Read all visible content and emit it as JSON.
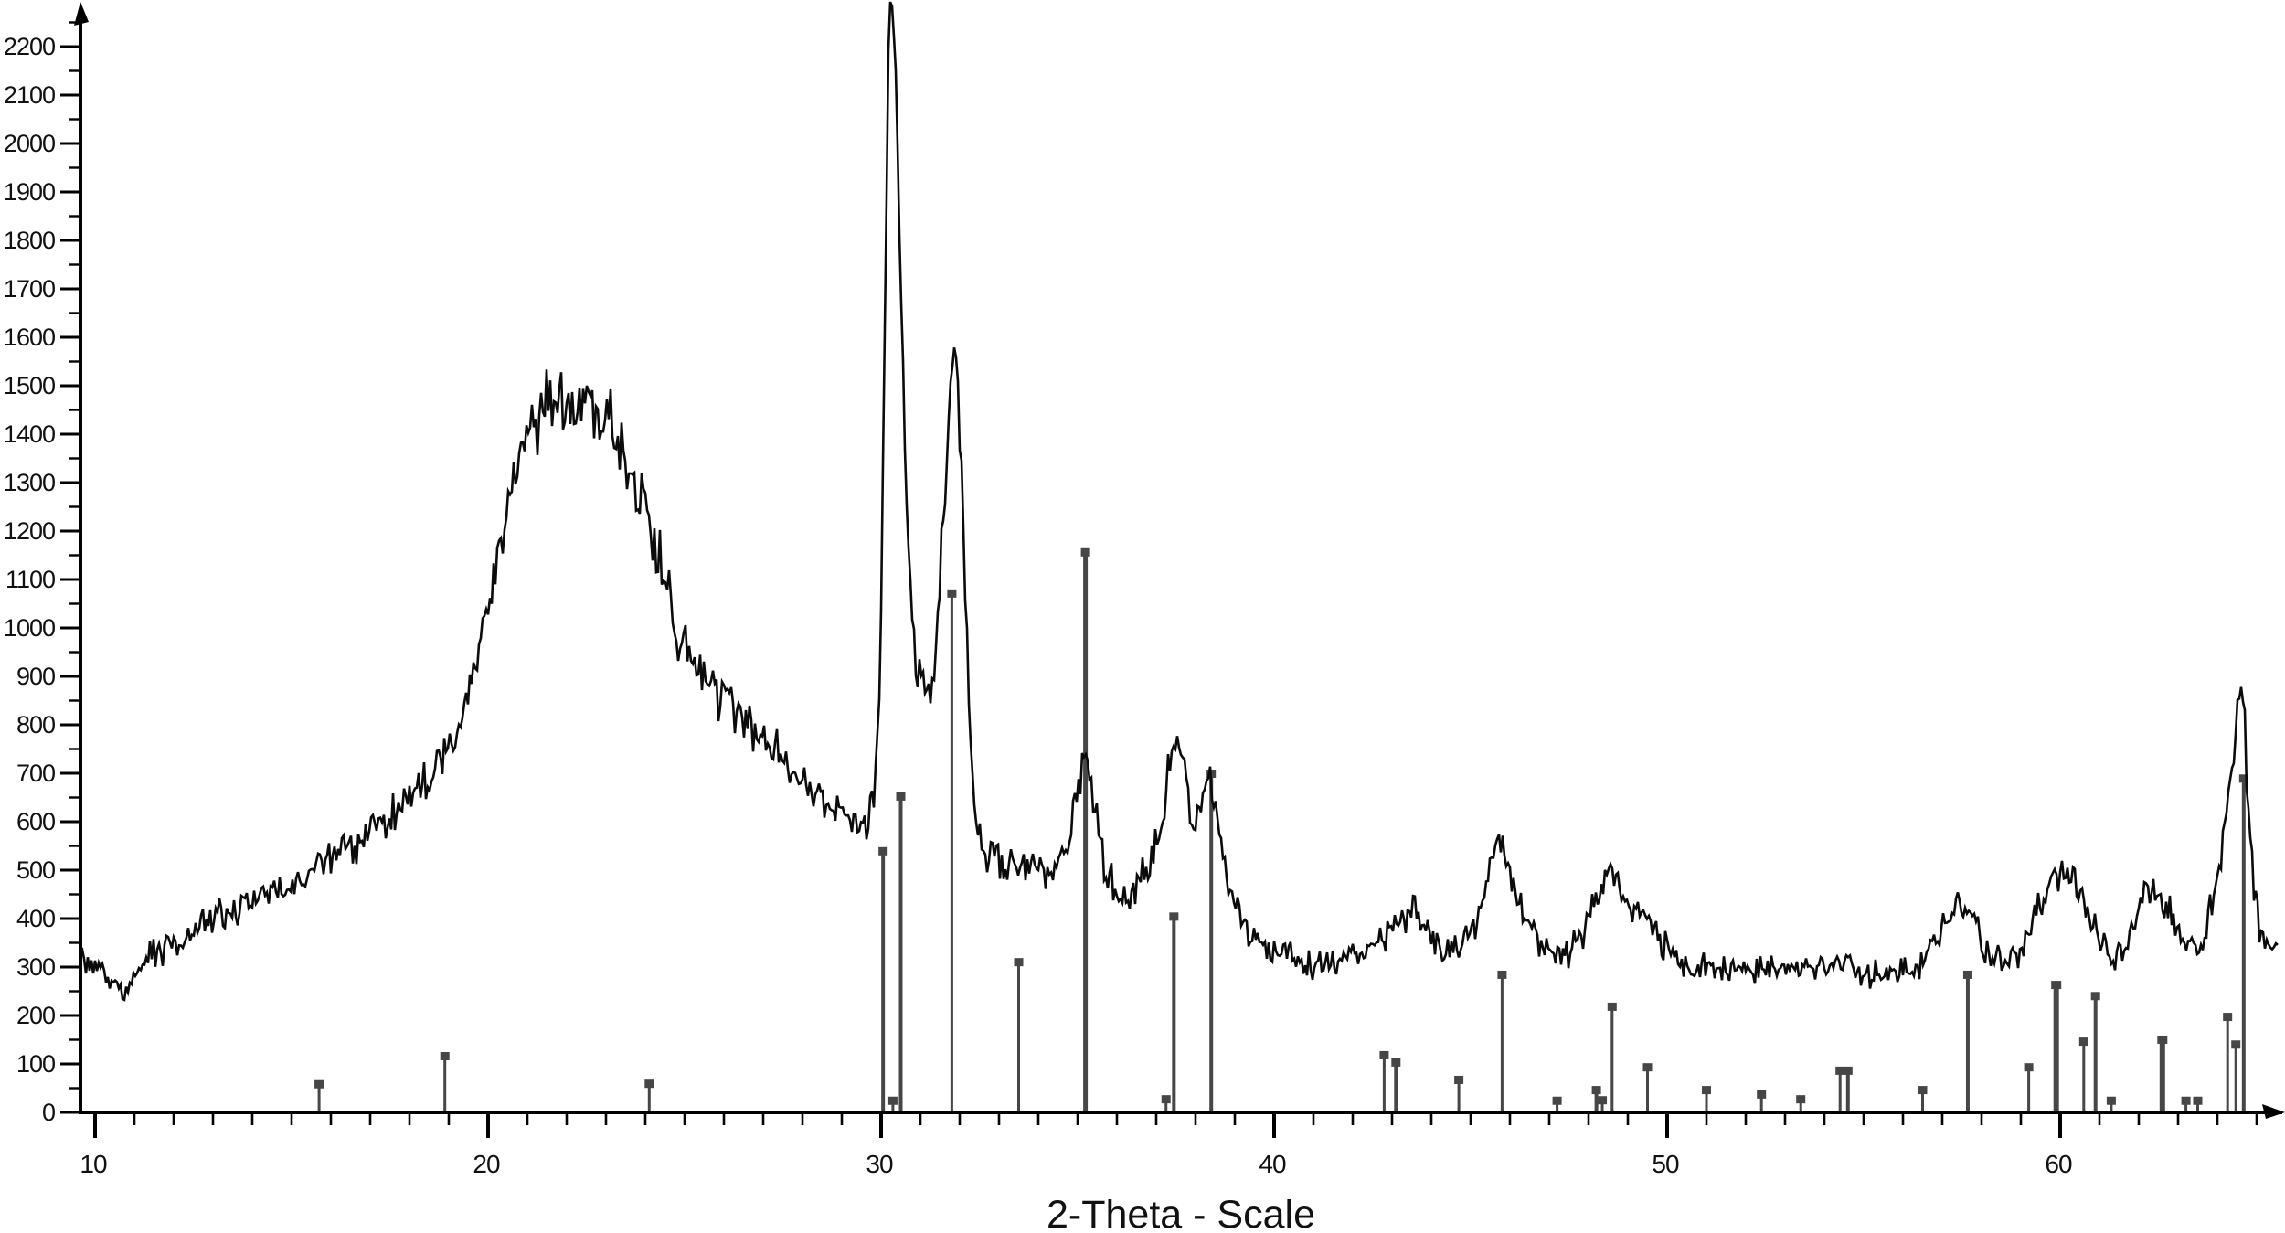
{
  "chart_data": {
    "type": "line",
    "chart_kind": "xrd-diffractogram",
    "title": "",
    "xlabel": "2-Theta - Scale",
    "ylabel": "",
    "grid": false,
    "legend": "none",
    "background_color": "#ffffff",
    "axis_color": "#000000",
    "x_axis": {
      "min": 9.6,
      "max": 65.9,
      "major_ticks": [
        10,
        20,
        30,
        40,
        50,
        60
      ],
      "major_tick_labels": [
        "10",
        "20",
        "30",
        "40",
        "50",
        "60"
      ],
      "minor_tick_step": 1,
      "minor_tick_range": [
        10,
        65
      ]
    },
    "y_axis": {
      "min": 0,
      "max": 2296,
      "major_tick_step": 100,
      "minor_tick_step": 50,
      "minor_tick_max": 2250,
      "major_tick_labels": [
        "0",
        "100",
        "200",
        "300",
        "400",
        "500",
        "600",
        "700",
        "800",
        "900",
        "1000",
        "1100",
        "1200",
        "1300",
        "1400",
        "1500",
        "1600",
        "1700",
        "1800",
        "1900",
        "2000",
        "2100",
        "2200"
      ],
      "major_tick_values": [
        0,
        100,
        200,
        300,
        400,
        500,
        600,
        700,
        800,
        900,
        1000,
        1100,
        1200,
        1300,
        1400,
        1500,
        1600,
        1700,
        1800,
        1900,
        2000,
        2100,
        2200
      ]
    },
    "series": [
      {
        "name": "measured-xrd-trace",
        "type": "noisy-line",
        "color": "#0b0b0b",
        "noise": {
          "base": 24,
          "scale": 0.045,
          "seed": 99
        },
        "envelope": [
          [
            9.63,
            330
          ],
          [
            10,
            305
          ],
          [
            10.4,
            270
          ],
          [
            10.8,
            240
          ],
          [
            11.1,
            300
          ],
          [
            11.5,
            330
          ],
          [
            12,
            345
          ],
          [
            12.5,
            365
          ],
          [
            13,
            400
          ],
          [
            13.5,
            420
          ],
          [
            14,
            440
          ],
          [
            14.5,
            450
          ],
          [
            15,
            470
          ],
          [
            15.5,
            505
          ],
          [
            16,
            530
          ],
          [
            16.5,
            545
          ],
          [
            17,
            575
          ],
          [
            17.5,
            610
          ],
          [
            18,
            645
          ],
          [
            18.4,
            675
          ],
          [
            18.8,
            720
          ],
          [
            19.2,
            800
          ],
          [
            19.6,
            900
          ],
          [
            20,
            1060
          ],
          [
            20.4,
            1220
          ],
          [
            20.8,
            1330
          ],
          [
            21.2,
            1430
          ],
          [
            21.6,
            1475
          ],
          [
            22,
            1480
          ],
          [
            22.4,
            1460
          ],
          [
            22.8,
            1435
          ],
          [
            23.2,
            1410
          ],
          [
            23.6,
            1350
          ],
          [
            24,
            1260
          ],
          [
            24.4,
            1120
          ],
          [
            24.8,
            980
          ],
          [
            25.2,
            925
          ],
          [
            25.6,
            885
          ],
          [
            26,
            850
          ],
          [
            26.5,
            815
          ],
          [
            27,
            775
          ],
          [
            27.5,
            730
          ],
          [
            28,
            685
          ],
          [
            28.5,
            650
          ],
          [
            29,
            615
          ],
          [
            29.4,
            592
          ],
          [
            29.65,
            605
          ],
          [
            29.85,
            680
          ],
          [
            30,
            1000
          ],
          [
            30.1,
            1700
          ],
          [
            30.2,
            2180
          ],
          [
            30.28,
            2290
          ],
          [
            30.36,
            2200
          ],
          [
            30.45,
            1850
          ],
          [
            30.55,
            1520
          ],
          [
            30.65,
            1250
          ],
          [
            30.8,
            1000
          ],
          [
            30.95,
            890
          ],
          [
            31.15,
            858
          ],
          [
            31.35,
            920
          ],
          [
            31.5,
            1080
          ],
          [
            31.65,
            1320
          ],
          [
            31.78,
            1520
          ],
          [
            31.87,
            1600
          ],
          [
            31.95,
            1520
          ],
          [
            32.05,
            1320
          ],
          [
            32.15,
            1050
          ],
          [
            32.25,
            800
          ],
          [
            32.4,
            620
          ],
          [
            32.6,
            545
          ],
          [
            32.9,
            515
          ],
          [
            33.2,
            500
          ],
          [
            33.5,
            515
          ],
          [
            33.8,
            510
          ],
          [
            34.1,
            495
          ],
          [
            34.4,
            505
          ],
          [
            34.7,
            540
          ],
          [
            34.95,
            640
          ],
          [
            35.12,
            740
          ],
          [
            35.3,
            700
          ],
          [
            35.5,
            585
          ],
          [
            35.7,
            500
          ],
          [
            35.95,
            462
          ],
          [
            36.2,
            450
          ],
          [
            36.5,
            465
          ],
          [
            36.8,
            505
          ],
          [
            37.1,
            590
          ],
          [
            37.35,
            720
          ],
          [
            37.55,
            775
          ],
          [
            37.75,
            690
          ],
          [
            37.95,
            585
          ],
          [
            38.15,
            630
          ],
          [
            38.35,
            695
          ],
          [
            38.55,
            610
          ],
          [
            38.75,
            500
          ],
          [
            39.05,
            420
          ],
          [
            39.4,
            365
          ],
          [
            39.8,
            340
          ],
          [
            40.3,
            325
          ],
          [
            40.8,
            310
          ],
          [
            41.3,
            305
          ],
          [
            41.8,
            320
          ],
          [
            42.3,
            335
          ],
          [
            42.8,
            360
          ],
          [
            43.3,
            405
          ],
          [
            43.6,
            415
          ],
          [
            43.9,
            370
          ],
          [
            44.3,
            335
          ],
          [
            44.7,
            345
          ],
          [
            45.1,
            390
          ],
          [
            45.45,
            480
          ],
          [
            45.7,
            570
          ],
          [
            45.9,
            520
          ],
          [
            46.2,
            430
          ],
          [
            46.6,
            370
          ],
          [
            47,
            330
          ],
          [
            47.4,
            325
          ],
          [
            47.8,
            355
          ],
          [
            48.1,
            420
          ],
          [
            48.35,
            470
          ],
          [
            48.55,
            515
          ],
          [
            48.75,
            470
          ],
          [
            49.1,
            415
          ],
          [
            49.45,
            395
          ],
          [
            49.8,
            355
          ],
          [
            50.2,
            315
          ],
          [
            50.7,
            295
          ],
          [
            51.2,
            300
          ],
          [
            51.7,
            305
          ],
          [
            52.2,
            300
          ],
          [
            52.7,
            295
          ],
          [
            53.2,
            300
          ],
          [
            53.7,
            295
          ],
          [
            54.2,
            305
          ],
          [
            54.7,
            300
          ],
          [
            55.2,
            285
          ],
          [
            55.7,
            290
          ],
          [
            56.2,
            300
          ],
          [
            56.6,
            320
          ],
          [
            57,
            385
          ],
          [
            57.42,
            455
          ],
          [
            57.8,
            405
          ],
          [
            58.1,
            330
          ],
          [
            58.5,
            305
          ],
          [
            58.9,
            325
          ],
          [
            59.3,
            385
          ],
          [
            59.7,
            465
          ],
          [
            60.1,
            500
          ],
          [
            60.5,
            455
          ],
          [
            60.9,
            375
          ],
          [
            61.3,
            315
          ],
          [
            61.7,
            350
          ],
          [
            62,
            420
          ],
          [
            62.35,
            465
          ],
          [
            62.7,
            425
          ],
          [
            63.1,
            355
          ],
          [
            63.5,
            325
          ],
          [
            63.9,
            440
          ],
          [
            64.15,
            555
          ],
          [
            64.4,
            720
          ],
          [
            64.55,
            875
          ],
          [
            64.68,
            830
          ],
          [
            64.8,
            600
          ],
          [
            64.95,
            430
          ],
          [
            65.1,
            370
          ],
          [
            65.35,
            340
          ],
          [
            65.6,
            325
          ]
        ]
      },
      {
        "name": "reference-pattern-peaks",
        "type": "stick",
        "color": "#464646",
        "marker": "square",
        "peaks": [
          [
            15.7,
            59,
            3
          ],
          [
            18.9,
            117,
            3
          ],
          [
            24.1,
            60,
            3
          ],
          [
            30.05,
            540,
            4
          ],
          [
            30.3,
            25,
            3
          ],
          [
            30.5,
            653,
            4
          ],
          [
            31.8,
            1072,
            3
          ],
          [
            33.5,
            311,
            3
          ],
          [
            35.2,
            1157,
            5
          ],
          [
            37.25,
            28,
            3
          ],
          [
            37.45,
            405,
            4
          ],
          [
            38.4,
            700,
            4
          ],
          [
            42.8,
            119,
            3
          ],
          [
            43.1,
            104,
            4
          ],
          [
            44.7,
            68,
            3
          ],
          [
            45.8,
            285,
            3
          ],
          [
            47.2,
            25,
            3
          ],
          [
            48.2,
            47,
            4
          ],
          [
            48.35,
            26,
            3
          ],
          [
            48.6,
            219,
            3
          ],
          [
            49.5,
            94,
            3
          ],
          [
            51,
            47,
            3
          ],
          [
            52.4,
            38,
            3
          ],
          [
            53.4,
            28,
            3
          ],
          [
            54.4,
            87,
            3
          ],
          [
            54.6,
            87,
            4
          ],
          [
            56.5,
            47,
            3
          ],
          [
            57.65,
            285,
            4
          ],
          [
            59.2,
            94,
            3
          ],
          [
            59.9,
            264,
            6
          ],
          [
            60.6,
            147,
            3
          ],
          [
            60.9,
            241,
            4
          ],
          [
            61.3,
            25,
            3
          ],
          [
            62.6,
            151,
            6
          ],
          [
            63.2,
            25,
            3
          ],
          [
            63.5,
            25,
            3
          ],
          [
            64.26,
            198,
            3
          ],
          [
            64.47,
            141,
            3
          ],
          [
            64.67,
            690,
            4
          ]
        ]
      }
    ]
  }
}
